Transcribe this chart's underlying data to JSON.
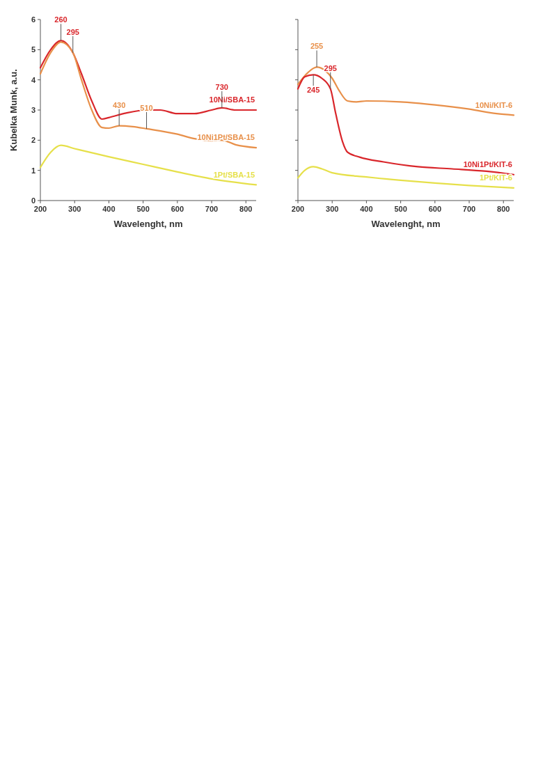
{
  "chart_data": [
    {
      "type": "line",
      "xlabel": "Wavelenght, nm",
      "ylabel": "Kubelka Munk, a.u.",
      "xlim": [
        200,
        830
      ],
      "ylim": [
        0,
        6
      ],
      "xticks": [
        200,
        300,
        400,
        500,
        600,
        700,
        800
      ],
      "yticks": [
        0,
        1,
        2,
        3,
        4,
        5,
        6
      ],
      "grid": false,
      "marker": "none",
      "line_style": "solid",
      "series": [
        {
          "name": "10Ni/SBA-15",
          "color": "#d9262b",
          "x": [
            200,
            230,
            260,
            295,
            320,
            350,
            380,
            400,
            450,
            510,
            550,
            600,
            650,
            700,
            730,
            770,
            830
          ],
          "values": [
            4.4,
            5.0,
            5.3,
            4.9,
            4.2,
            3.3,
            2.7,
            2.75,
            2.9,
            3.0,
            3.0,
            2.88,
            2.88,
            3.0,
            3.07,
            3.0,
            3.0
          ]
        },
        {
          "name": "10Ni1Pt/SBA-15",
          "color": "#e8904a",
          "x": [
            200,
            230,
            260,
            295,
            320,
            350,
            380,
            400,
            430,
            470,
            510,
            600,
            650,
            700,
            730,
            770,
            830
          ],
          "values": [
            4.2,
            4.9,
            5.25,
            4.9,
            4.0,
            3.0,
            2.42,
            2.4,
            2.48,
            2.45,
            2.38,
            2.2,
            2.05,
            1.98,
            2.0,
            1.85,
            1.75
          ]
        },
        {
          "name": "1Pt/SBA-15",
          "color": "#e6e04a",
          "x": [
            200,
            230,
            260,
            300,
            400,
            500,
            600,
            700,
            830
          ],
          "values": [
            1.1,
            1.6,
            1.83,
            1.72,
            1.45,
            1.2,
            0.95,
            0.72,
            0.52
          ]
        }
      ],
      "annotations": [
        {
          "text": "260",
          "x": 260,
          "y": 5.3
        },
        {
          "text": "295",
          "x": 295,
          "y": 4.9
        },
        {
          "text": "430",
          "x": 430,
          "y": 2.48
        },
        {
          "text": "510",
          "x": 510,
          "y": 2.38
        },
        {
          "text": "730",
          "x": 730,
          "y": 3.07
        }
      ]
    },
    {
      "type": "line",
      "xlabel": "Wavelenght, nm",
      "xlim": [
        200,
        830
      ],
      "ylim": [
        0,
        6
      ],
      "xticks": [
        200,
        300,
        400,
        500,
        600,
        700,
        800
      ],
      "yticks": [
        0,
        1,
        2,
        3,
        4,
        5,
        6
      ],
      "tick_labels": "x",
      "grid": false,
      "marker": "none",
      "line_style": "solid",
      "series": [
        {
          "name": "10Ni/KIT-6",
          "color": "#e8904a",
          "x": [
            200,
            230,
            255,
            280,
            300,
            320,
            345,
            370,
            400,
            500,
            600,
            700,
            780,
            830
          ],
          "values": [
            3.85,
            4.25,
            4.42,
            4.3,
            4.05,
            3.65,
            3.3,
            3.27,
            3.3,
            3.27,
            3.17,
            3.03,
            2.88,
            2.83
          ]
        },
        {
          "name": "10Ni1Pt/KIT-6",
          "color": "#d9262b",
          "x": [
            200,
            220,
            245,
            270,
            295,
            310,
            330,
            345,
            380,
            450,
            550,
            650,
            750,
            830
          ],
          "values": [
            3.7,
            4.1,
            4.17,
            4.05,
            3.7,
            2.9,
            1.96,
            1.6,
            1.44,
            1.28,
            1.12,
            1.05,
            0.97,
            0.86
          ]
        },
        {
          "name": "1Pt/KIT-6",
          "color": "#e6e04a",
          "x": [
            200,
            220,
            245,
            270,
            300,
            400,
            500,
            600,
            700,
            830
          ],
          "values": [
            0.75,
            1.0,
            1.12,
            1.05,
            0.92,
            0.78,
            0.67,
            0.58,
            0.5,
            0.42
          ]
        }
      ],
      "annotations": [
        {
          "text": "255",
          "x": 255,
          "y": 4.42
        },
        {
          "text": "295",
          "x": 295,
          "y": 3.7
        },
        {
          "text": "245",
          "x": 245,
          "y": 4.17
        }
      ]
    }
  ]
}
